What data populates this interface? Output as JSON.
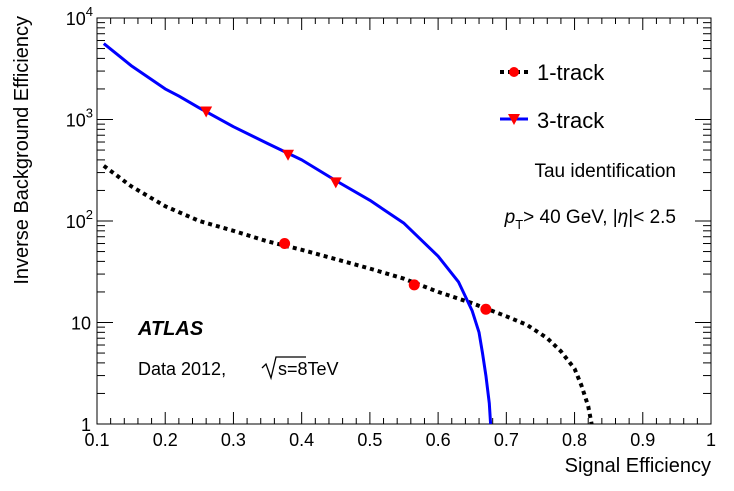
{
  "chart_data": {
    "type": "line",
    "xlabel": "Signal Efficiency",
    "ylabel": "Inverse Background Efficiency",
    "xlim": [
      0.1,
      1.0
    ],
    "ylim": [
      1,
      10000
    ],
    "y_scale": "log",
    "grid": false,
    "legend_position": "top-right",
    "x_ticks": [
      "0.1",
      "0.2",
      "0.3",
      "0.4",
      "0.5",
      "0.6",
      "0.7",
      "0.8",
      "0.9",
      "1"
    ],
    "y_ticks": [
      {
        "value": 1,
        "base": "1",
        "exp": ""
      },
      {
        "value": 10,
        "base": "10",
        "exp": ""
      },
      {
        "value": 100,
        "base": "10",
        "exp": "2"
      },
      {
        "value": 1000,
        "base": "10",
        "exp": "3"
      },
      {
        "value": 10000,
        "base": "10",
        "exp": "4"
      }
    ],
    "series": [
      {
        "name": "1-track",
        "color": "#000000",
        "line_style": "dotted",
        "marker": "circle",
        "marker_color": "#ff0000",
        "x": [
          0.11,
          0.15,
          0.2,
          0.25,
          0.3,
          0.35,
          0.4,
          0.45,
          0.5,
          0.55,
          0.6,
          0.65,
          0.7,
          0.73,
          0.76,
          0.78,
          0.8,
          0.81,
          0.82,
          0.825
        ],
        "y": [
          350,
          220,
          140,
          100,
          80,
          63,
          52,
          42,
          34,
          27,
          20,
          15.5,
          11.5,
          9.5,
          7,
          5.2,
          3.5,
          2.4,
          1.5,
          1.0
        ],
        "markers_x": [
          0.375,
          0.565,
          0.67
        ],
        "markers_y": [
          60,
          23.5,
          13.5
        ]
      },
      {
        "name": "3-track",
        "color": "#0000ff",
        "line_style": "solid",
        "marker": "triangle-down",
        "marker_color": "#ff0000",
        "x": [
          0.11,
          0.15,
          0.2,
          0.22,
          0.25,
          0.3,
          0.35,
          0.4,
          0.45,
          0.5,
          0.55,
          0.6,
          0.63,
          0.65,
          0.66,
          0.665,
          0.67,
          0.675,
          0.677
        ],
        "y": [
          5600,
          3400,
          2000,
          1700,
          1300,
          850,
          580,
          400,
          250,
          160,
          95,
          45,
          25,
          13,
          8,
          5,
          3,
          1.6,
          1.0
        ],
        "markers_x": [
          0.26,
          0.38,
          0.45
        ],
        "markers_y": [
          1200,
          450,
          240
        ]
      }
    ],
    "annotations": {
      "experiment": "ATLAS",
      "data_label": "Data 2012,",
      "energy_label": "s=8TeV",
      "tau_label": "Tau identification",
      "pt_p": "p",
      "pt_sub": "T",
      "pt_rest": "> 40 GeV, |",
      "eta": "η",
      "eta_rest": "|< 2.5"
    }
  }
}
